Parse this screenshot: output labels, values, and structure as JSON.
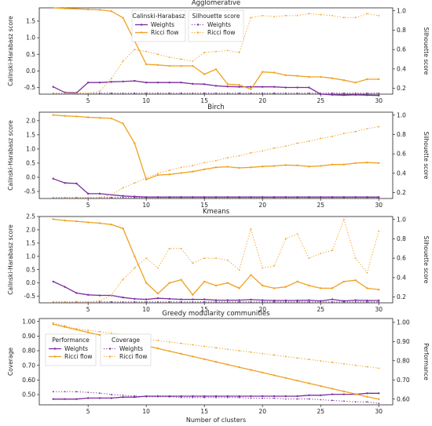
{
  "chart_data": [
    {
      "type": "line",
      "title": "Agglomerative",
      "x": [
        2,
        3,
        4,
        5,
        6,
        7,
        8,
        9,
        10,
        11,
        12,
        13,
        14,
        15,
        16,
        17,
        18,
        19,
        20,
        21,
        22,
        23,
        24,
        25,
        26,
        27,
        28,
        29,
        30
      ],
      "xlim": [
        0.8,
        31.2
      ],
      "x_ticks": [
        5,
        10,
        15,
        20,
        25,
        30
      ],
      "ylabel": "Calinski-Harabasz score",
      "ylim": [
        -0.7,
        1.9
      ],
      "y_ticks": [
        -0.5,
        0.0,
        0.5,
        1.0,
        1.5
      ],
      "y2label": "Silhouette score",
      "y2lim": [
        0.14,
        1.03
      ],
      "y2_ticks": [
        0.2,
        0.4,
        0.6,
        0.8,
        1.0
      ],
      "legends": [
        {
          "title": "Calinski-Harabasz",
          "entries": [
            "Weights",
            "Ricci flow"
          ],
          "position": "top-center-left"
        },
        {
          "title": "Silhouette score",
          "entries": [
            "Weights",
            "Ricci flow"
          ],
          "position": "top-center-right"
        }
      ],
      "series": [
        {
          "name": "Weights",
          "legend": 0,
          "axis": "left",
          "color": "#7b2d9e",
          "style": "solid",
          "values": [
            -0.48,
            -0.65,
            -0.66,
            -0.35,
            -0.35,
            -0.33,
            -0.32,
            -0.3,
            -0.35,
            -0.35,
            -0.35,
            -0.35,
            -0.39,
            -0.4,
            -0.45,
            -0.47,
            -0.48,
            -0.48,
            -0.48,
            -0.48,
            -0.5,
            -0.5,
            -0.5,
            -0.7,
            -0.72,
            -0.73,
            -0.72,
            -0.73,
            -0.74
          ]
        },
        {
          "name": "Ricci flow",
          "legend": 0,
          "axis": "left",
          "color": "#f0a020",
          "style": "solid",
          "values": [
            1.9,
            1.88,
            1.87,
            1.85,
            1.84,
            1.8,
            1.6,
            0.9,
            0.2,
            0.18,
            0.15,
            0.15,
            0.15,
            -0.1,
            0.05,
            -0.4,
            -0.42,
            -0.55,
            -0.03,
            -0.05,
            -0.13,
            -0.15,
            -0.18,
            -0.18,
            -0.22,
            -0.28,
            -0.35,
            -0.25,
            -0.25
          ]
        },
        {
          "name": "Weights",
          "legend": 1,
          "axis": "right",
          "color": "#7b2d9e",
          "style": "dotted",
          "values": [
            0.15,
            0.15,
            0.15,
            0.15,
            0.15,
            0.15,
            0.15,
            0.15,
            0.15,
            0.15,
            0.15,
            0.15,
            0.15,
            0.15,
            0.15,
            0.15,
            0.15,
            0.15,
            0.15,
            0.15,
            0.15,
            0.15,
            0.15,
            0.15,
            0.15,
            0.15,
            0.15,
            0.15,
            0.15
          ]
        },
        {
          "name": "Ricci flow",
          "legend": 1,
          "axis": "right",
          "color": "#f0a020",
          "style": "dotted",
          "values": [
            0.15,
            0.15,
            0.15,
            0.15,
            0.17,
            0.3,
            0.48,
            0.6,
            0.58,
            0.55,
            0.52,
            0.5,
            0.48,
            0.57,
            0.58,
            0.59,
            0.57,
            0.93,
            0.95,
            0.94,
            0.95,
            0.95,
            0.97,
            0.96,
            0.95,
            0.93,
            0.93,
            0.97,
            0.95
          ]
        }
      ]
    },
    {
      "type": "line",
      "title": "Birch",
      "x": [
        2,
        3,
        4,
        5,
        6,
        7,
        8,
        9,
        10,
        11,
        12,
        13,
        14,
        15,
        16,
        17,
        18,
        19,
        20,
        21,
        22,
        23,
        24,
        25,
        26,
        27,
        28,
        29,
        30
      ],
      "xlim": [
        0.8,
        31.2
      ],
      "x_ticks": [
        5,
        10,
        15,
        20,
        25,
        30
      ],
      "ylabel": "Calinski-Harabasz score",
      "ylim": [
        -0.75,
        2.3
      ],
      "y_ticks": [
        -0.5,
        0.0,
        0.5,
        1.0,
        1.5,
        2.0
      ],
      "y2label": "Silhouette score",
      "y2lim": [
        0.14,
        1.03
      ],
      "y2_ticks": [
        0.2,
        0.4,
        0.6,
        0.8,
        1.0
      ],
      "series": [
        {
          "name": "Weights",
          "axis": "left",
          "color": "#7b2d9e",
          "style": "solid",
          "values": [
            -0.05,
            -0.2,
            -0.22,
            -0.58,
            -0.58,
            -0.62,
            -0.66,
            -0.68,
            -0.7,
            -0.7,
            -0.7,
            -0.7,
            -0.7,
            -0.7,
            -0.7,
            -0.7,
            -0.7,
            -0.7,
            -0.7,
            -0.7,
            -0.7,
            -0.7,
            -0.7,
            -0.7,
            -0.7,
            -0.7,
            -0.7,
            -0.7,
            -0.7
          ]
        },
        {
          "name": "Ricci flow",
          "axis": "left",
          "color": "#f0a020",
          "style": "solid",
          "values": [
            2.2,
            2.17,
            2.15,
            2.12,
            2.1,
            2.08,
            1.9,
            1.2,
            -0.08,
            0.08,
            0.1,
            0.15,
            0.2,
            0.28,
            0.35,
            0.37,
            0.33,
            0.35,
            0.38,
            0.4,
            0.43,
            0.42,
            0.38,
            0.4,
            0.45,
            0.45,
            0.5,
            0.52,
            0.5
          ]
        },
        {
          "name": "Weights",
          "axis": "right",
          "color": "#7b2d9e",
          "style": "dotted",
          "values": [
            0.15,
            0.15,
            0.15,
            0.15,
            0.15,
            0.15,
            0.15,
            0.15,
            0.15,
            0.15,
            0.15,
            0.15,
            0.15,
            0.15,
            0.15,
            0.15,
            0.15,
            0.15,
            0.15,
            0.15,
            0.15,
            0.15,
            0.15,
            0.15,
            0.15,
            0.15,
            0.15,
            0.15,
            0.15
          ]
        },
        {
          "name": "Ricci flow",
          "axis": "right",
          "color": "#f0a020",
          "style": "dotted",
          "values": [
            0.15,
            0.15,
            0.15,
            0.15,
            0.15,
            0.18,
            0.25,
            0.3,
            0.35,
            0.4,
            0.43,
            0.46,
            0.48,
            0.51,
            0.53,
            0.56,
            0.58,
            0.61,
            0.63,
            0.66,
            0.68,
            0.71,
            0.73,
            0.76,
            0.78,
            0.81,
            0.83,
            0.86,
            0.88
          ]
        }
      ]
    },
    {
      "type": "line",
      "title": "Kmeans",
      "x": [
        2,
        3,
        4,
        5,
        6,
        7,
        8,
        9,
        10,
        11,
        12,
        13,
        14,
        15,
        16,
        17,
        18,
        19,
        20,
        21,
        22,
        23,
        24,
        25,
        26,
        27,
        28,
        29,
        30
      ],
      "xlim": [
        0.8,
        31.2
      ],
      "x_ticks": [
        5,
        10,
        15,
        20,
        25,
        30
      ],
      "ylabel": "Calinski-Harabasz score",
      "ylim": [
        -0.75,
        2.5
      ],
      "y_ticks": [
        -0.5,
        0.0,
        0.5,
        1.0,
        1.5,
        2.0,
        2.5
      ],
      "y2label": "Silhouette score",
      "y2lim": [
        0.14,
        1.03
      ],
      "y2_ticks": [
        0.2,
        0.4,
        0.6,
        0.8,
        1.0
      ],
      "series": [
        {
          "name": "Weights",
          "axis": "left",
          "color": "#7b2d9e",
          "style": "solid",
          "values": [
            0.05,
            -0.15,
            -0.38,
            -0.45,
            -0.47,
            -0.47,
            -0.55,
            -0.6,
            -0.62,
            -0.58,
            -0.6,
            -0.62,
            -0.62,
            -0.62,
            -0.65,
            -0.65,
            -0.65,
            -0.63,
            -0.65,
            -0.66,
            -0.66,
            -0.66,
            -0.65,
            -0.68,
            -0.62,
            -0.68,
            -0.65,
            -0.66,
            -0.66
          ]
        },
        {
          "name": "Ricci flow",
          "axis": "left",
          "color": "#f0a020",
          "style": "solid",
          "values": [
            2.4,
            2.35,
            2.32,
            2.28,
            2.25,
            2.2,
            2.05,
            1.0,
            0.0,
            -0.4,
            0.0,
            0.12,
            -0.45,
            0.05,
            -0.1,
            0.0,
            -0.2,
            0.3,
            -0.1,
            -0.2,
            -0.15,
            0.05,
            -0.1,
            -0.2,
            -0.2,
            0.05,
            0.1,
            -0.2,
            -0.25
          ]
        },
        {
          "name": "Weights",
          "axis": "right",
          "color": "#7b2d9e",
          "style": "dotted",
          "values": [
            0.15,
            0.15,
            0.15,
            0.15,
            0.15,
            0.15,
            0.15,
            0.15,
            0.15,
            0.15,
            0.15,
            0.15,
            0.15,
            0.15,
            0.15,
            0.15,
            0.15,
            0.15,
            0.15,
            0.15,
            0.15,
            0.15,
            0.15,
            0.15,
            0.15,
            0.15,
            0.15,
            0.15,
            0.15
          ]
        },
        {
          "name": "Ricci flow",
          "axis": "right",
          "color": "#f0a020",
          "style": "dotted",
          "values": [
            0.15,
            0.15,
            0.15,
            0.15,
            0.16,
            0.22,
            0.38,
            0.5,
            0.6,
            0.5,
            0.7,
            0.7,
            0.55,
            0.6,
            0.6,
            0.58,
            0.48,
            0.9,
            0.5,
            0.52,
            0.8,
            0.85,
            0.6,
            0.65,
            0.68,
            1.0,
            0.6,
            0.45,
            0.88
          ]
        }
      ]
    },
    {
      "type": "line",
      "title": "Greedy modularity communities",
      "xlabel": "Number of clusters",
      "x": [
        2,
        3,
        4,
        5,
        6,
        7,
        8,
        9,
        10,
        11,
        12,
        13,
        14,
        15,
        16,
        17,
        18,
        19,
        20,
        21,
        22,
        23,
        24,
        25,
        26,
        27,
        28,
        29,
        30
      ],
      "xlim": [
        0.8,
        31.2
      ],
      "x_ticks": [
        5,
        10,
        15,
        20,
        25,
        30
      ],
      "ylabel": "Coverage",
      "ylim": [
        0.43,
        1.02
      ],
      "y_ticks": [
        0.5,
        0.6,
        0.7,
        0.8,
        0.9,
        1.0
      ],
      "y2label": "Performance",
      "y2lim": [
        0.57,
        1.02
      ],
      "y2_ticks": [
        0.6,
        0.7,
        0.8,
        0.9,
        1.0
      ],
      "legends": [
        {
          "title": "Performance",
          "entries": [
            "Weights",
            "Ricci flow"
          ],
          "position": "middle-left"
        },
        {
          "title": "Coverage",
          "entries": [
            "Weights",
            "Ricci flow"
          ],
          "position": "middle-left"
        }
      ],
      "series": [
        {
          "name": "Weights",
          "legend": 0,
          "axis": "right",
          "color": "#7b2d9e",
          "style": "solid",
          "values": [
            0.6,
            0.6,
            0.6,
            0.605,
            0.605,
            0.605,
            0.61,
            0.61,
            0.615,
            0.615,
            0.615,
            0.615,
            0.615,
            0.615,
            0.615,
            0.615,
            0.615,
            0.615,
            0.615,
            0.615,
            0.615,
            0.615,
            0.62,
            0.62,
            0.625,
            0.625,
            0.625,
            0.63,
            0.63
          ]
        },
        {
          "name": "Ricci flow",
          "legend": 0,
          "axis": "right",
          "color": "#f0a020",
          "style": "solid",
          "values": [
            0.99,
            0.976,
            0.962,
            0.948,
            0.934,
            0.92,
            0.906,
            0.892,
            0.878,
            0.864,
            0.85,
            0.836,
            0.822,
            0.808,
            0.794,
            0.78,
            0.766,
            0.752,
            0.738,
            0.724,
            0.71,
            0.696,
            0.682,
            0.668,
            0.654,
            0.64,
            0.626,
            0.612,
            0.6
          ]
        },
        {
          "name": "Weights",
          "legend": 1,
          "axis": "left",
          "color": "#7b2d9e",
          "style": "dotted",
          "values": [
            0.52,
            0.52,
            0.52,
            0.515,
            0.51,
            0.5,
            0.495,
            0.49,
            0.485,
            0.485,
            0.485,
            0.48,
            0.48,
            0.48,
            0.48,
            0.48,
            0.48,
            0.475,
            0.475,
            0.475,
            0.47,
            0.47,
            0.47,
            0.465,
            0.46,
            0.455,
            0.45,
            0.45,
            0.44
          ]
        },
        {
          "name": "Ricci flow",
          "legend": 1,
          "axis": "left",
          "color": "#f0a020",
          "style": "dotted",
          "values": [
            0.99,
            0.97,
            0.95,
            0.94,
            0.93,
            0.92,
            0.91,
            0.89,
            0.88,
            0.87,
            0.86,
            0.85,
            0.84,
            0.83,
            0.82,
            0.81,
            0.8,
            0.79,
            0.78,
            0.77,
            0.76,
            0.75,
            0.74,
            0.73,
            0.72,
            0.71,
            0.7,
            0.69,
            0.68
          ]
        }
      ]
    }
  ]
}
